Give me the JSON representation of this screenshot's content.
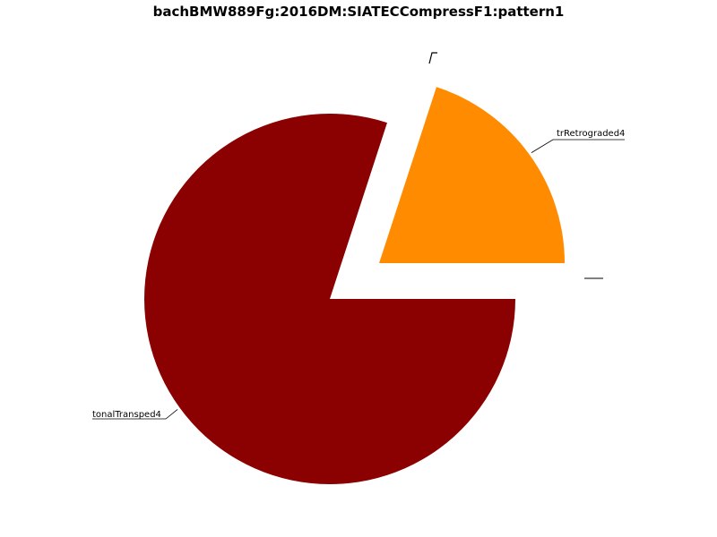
{
  "chart_data": {
    "type": "pie",
    "title": "bachBMW889Fg:2016DM:SIATECCompressF1:pattern1",
    "slices": [
      {
        "label": "trRetrograded4",
        "value": 20,
        "color": "#ff8c00",
        "exploded": true
      },
      {
        "label": "tonalTransped4",
        "value": 80,
        "color": "#8b0000",
        "exploded": false
      }
    ],
    "start_angle_deg": 0,
    "direction": "counterclockwise",
    "legend": "none",
    "grid": false
  }
}
